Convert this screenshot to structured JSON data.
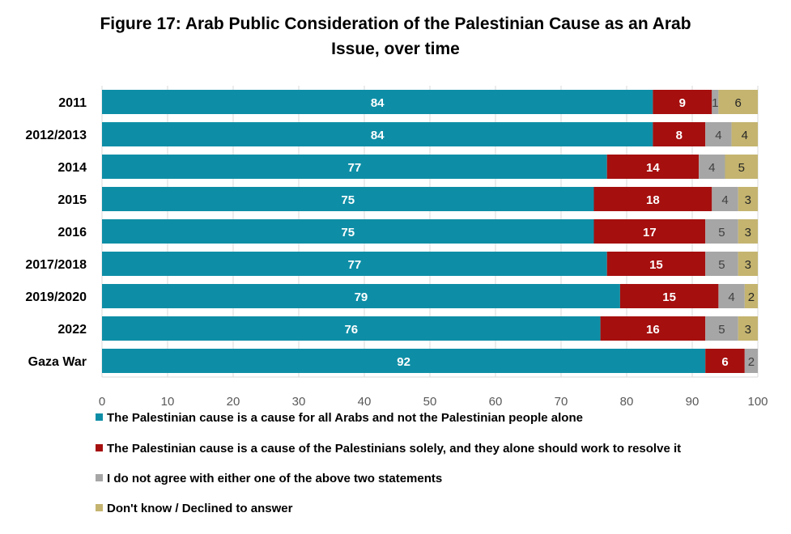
{
  "chart_data": {
    "type": "bar",
    "orientation": "horizontal",
    "stacked": true,
    "title_line1": "Figure 17: Arab Public Consideration of the Palestinian Cause as an Arab",
    "title_line2": "Issue, over time",
    "categories": [
      "2011",
      "2012/2013",
      "2014",
      "2015",
      "2016",
      "2017/2018",
      "2019/2020",
      "2022",
      "Gaza War"
    ],
    "series": [
      {
        "name": "The Palestinian cause is a cause for all Arabs and not the Palestinian people alone",
        "color": "#0e8ea6",
        "label_color": "#ffffff",
        "values": [
          84,
          84,
          77,
          75,
          75,
          77,
          79,
          76,
          92
        ]
      },
      {
        "name": "The Palestinian cause is a cause of the Palestinians solely, and they alone should work to resolve it",
        "color": "#a50f0e",
        "label_color": "#ffffff",
        "values": [
          9,
          8,
          14,
          18,
          17,
          15,
          15,
          16,
          6
        ]
      },
      {
        "name": "I do not agree with either one of the above two statements",
        "color": "#a6a6a6",
        "label_color": "#404040",
        "values": [
          1,
          4,
          4,
          4,
          5,
          5,
          4,
          5,
          2
        ]
      },
      {
        "name": "Don't know / Declined to answer",
        "color": "#c4b46f",
        "label_color": "#262626",
        "values": [
          6,
          4,
          5,
          3,
          3,
          3,
          2,
          3,
          0
        ]
      }
    ],
    "xlim": [
      0,
      100
    ],
    "xticks": [
      "0",
      "10",
      "20",
      "30",
      "40",
      "50",
      "60",
      "70",
      "80",
      "90",
      "100"
    ],
    "grid": true,
    "legend_position": "bottom"
  }
}
